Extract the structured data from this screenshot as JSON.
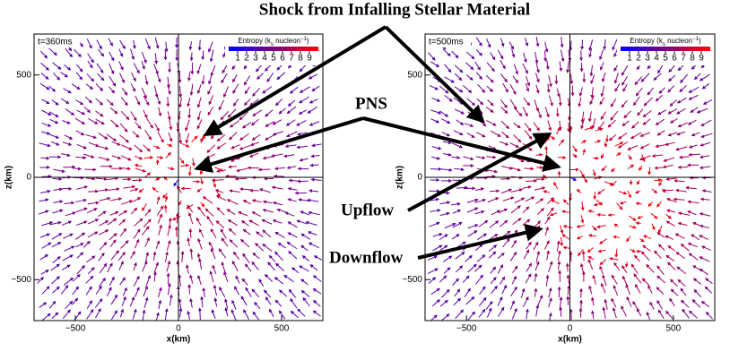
{
  "chart_data": [
    {
      "type": "quiver",
      "title": "t=360ms",
      "xlabel": "x(km)",
      "ylabel": "z(km)",
      "xlim": [
        -700,
        700
      ],
      "ylim": [
        -700,
        700
      ],
      "xticks": [
        {
          "value": -500,
          "label": "−500"
        },
        0,
        500
      ],
      "yticks": [
        {
          "value": -500,
          "label": "−500"
        },
        0,
        500
      ],
      "colorbar": {
        "label": [
          "Entropy (k",
          "s",
          " nucleon",
          "−1",
          ")"
        ],
        "range": [
          0,
          10
        ],
        "ticks": [
          1,
          2,
          3,
          4,
          5,
          6,
          7,
          8,
          9
        ],
        "colors": [
          "#0000ff",
          "#ff0000"
        ]
      }
    },
    {
      "type": "quiver",
      "title": "t=500ms",
      "xlabel": "x(km)",
      "ylabel": "z(km)",
      "xlim": [
        -700,
        700
      ],
      "ylim": [
        -700,
        700
      ],
      "xticks": [
        {
          "value": -500,
          "label": "−500"
        },
        0,
        500
      ],
      "yticks": [
        {
          "value": -500,
          "label": "−500"
        },
        0,
        500
      ],
      "colorbar": {
        "label": [
          "Entropy (k",
          "s",
          " nucleon",
          "−1",
          ")"
        ],
        "range": [
          0,
          10
        ],
        "ticks": [
          1,
          2,
          3,
          4,
          5,
          6,
          7,
          8,
          9
        ],
        "colors": [
          "#0000ff",
          "#ff0000"
        ]
      }
    }
  ],
  "annotations": {
    "shock": "Shock from Infalling Stellar Material",
    "pns": "PNS",
    "upflow": "Upflow",
    "downflow": "Downflow"
  }
}
